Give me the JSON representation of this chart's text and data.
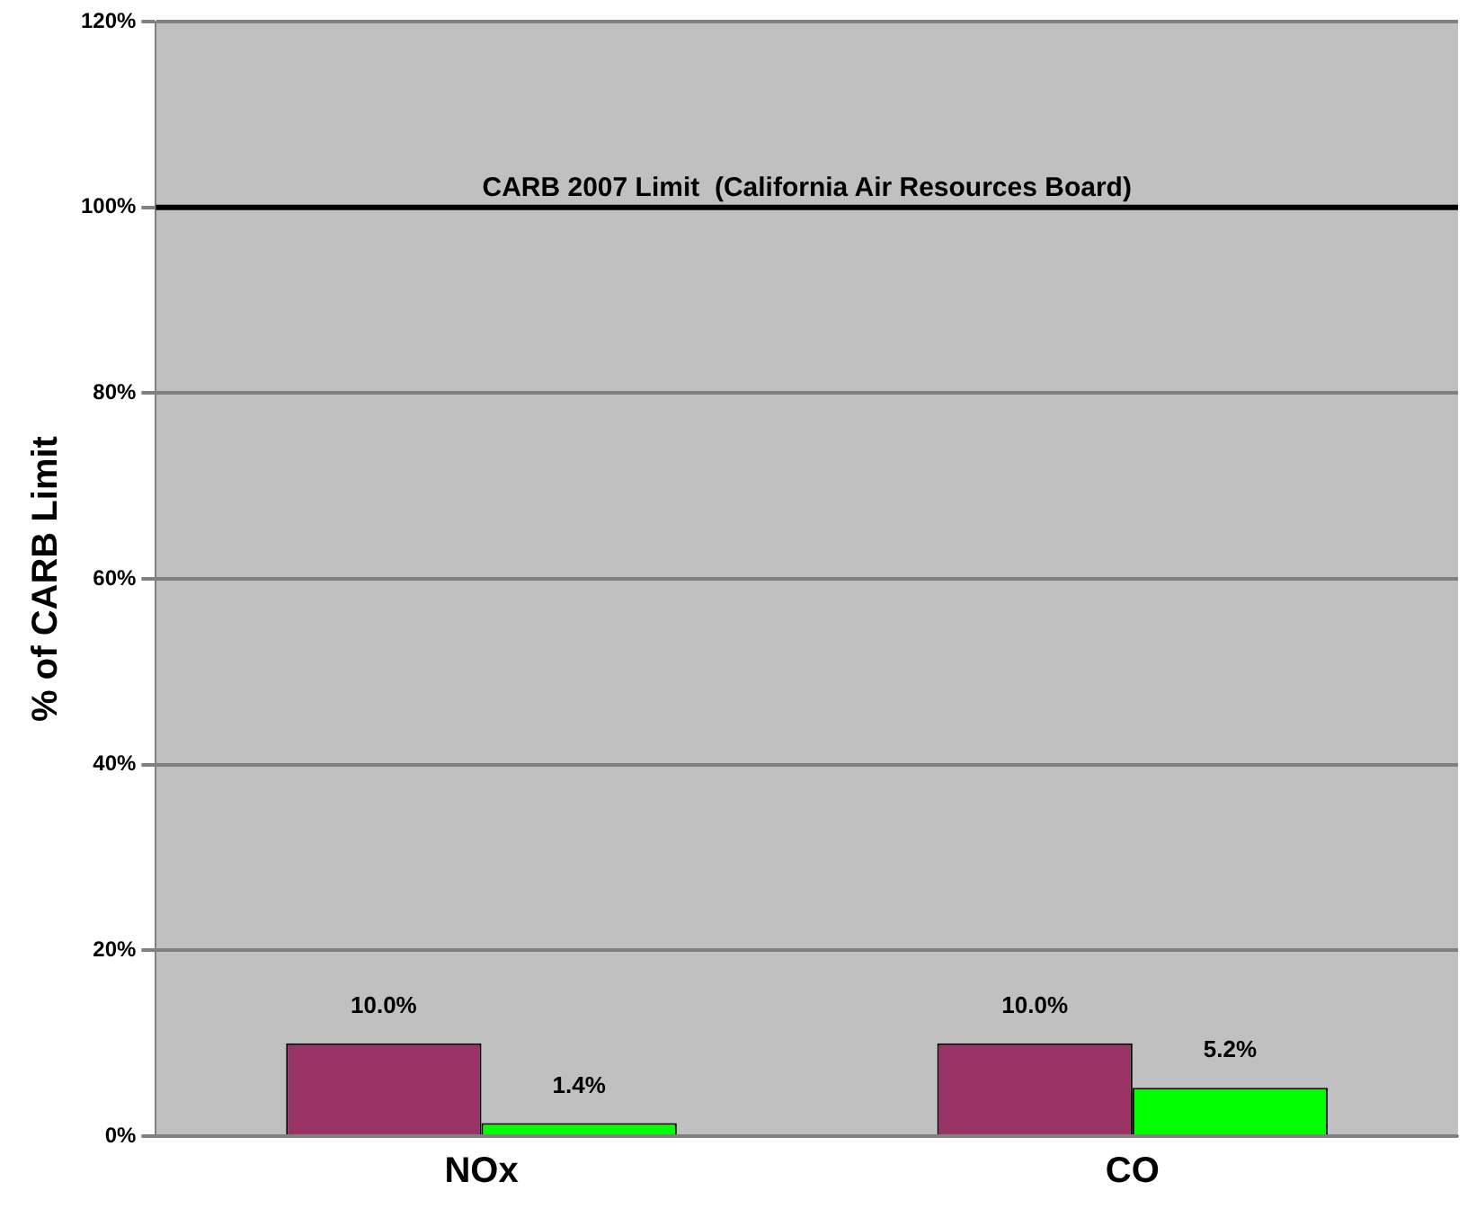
{
  "chart_data": {
    "type": "bar",
    "categories": [
      "NOx",
      "CO"
    ],
    "series": [
      {
        "color": "#993366",
        "values": [
          10,
          10
        ],
        "value_labels": [
          "10.0%",
          "10.0%"
        ]
      },
      {
        "color": "#00ff00",
        "values": [
          1.4,
          5.2
        ],
        "value_labels": [
          "1.4%",
          "5.2%"
        ]
      }
    ],
    "ylabel": "% of CARB Limit",
    "ylim": [
      0,
      120
    ],
    "yticks": [
      {
        "value": 0,
        "label": "0%"
      },
      {
        "value": 20,
        "label": "20%"
      },
      {
        "value": 40,
        "label": "40%"
      },
      {
        "value": 60,
        "label": "60%"
      },
      {
        "value": 80,
        "label": "80%"
      },
      {
        "value": 100,
        "label": "100%"
      },
      {
        "value": 120,
        "label": "120%"
      }
    ],
    "ref_lines": [
      {
        "axis": "y",
        "value": 100,
        "label": "CARB 2007 Limit  (California Air Resources Board)",
        "color": "#000000"
      }
    ],
    "grid": "y",
    "legend": false
  }
}
